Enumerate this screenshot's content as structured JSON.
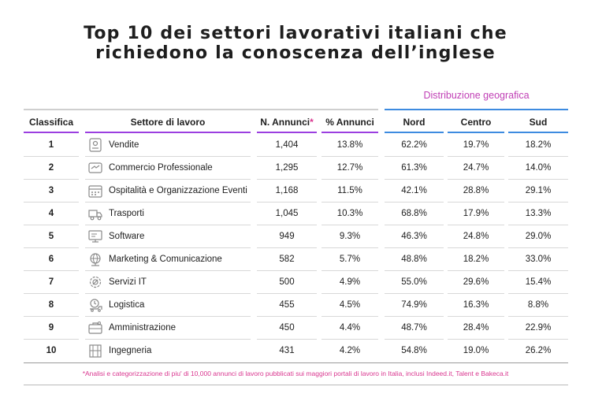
{
  "title_line1": "Top 10 dei settori lavorativi italiani che",
  "title_line2": "richiedono la conoscenza dell’inglese",
  "geo_title": "Distribuzione geografica",
  "headers": {
    "rank": "Classifica",
    "sector": "Settore di lavoro",
    "ads": "N. Annunci",
    "ads_mark": "*",
    "pct": "% Annunci",
    "nord": "Nord",
    "centro": "Centro",
    "sud": "Sud"
  },
  "colors": {
    "accent_purple": "#9b3fe0",
    "accent_blue": "#3d8be0",
    "accent_pink": "#d9368f"
  },
  "chart_data": {
    "type": "table",
    "rows": [
      {
        "rank": "1",
        "sector": "Vendite",
        "icon": "price-tag-icon",
        "ads": "1,404",
        "pct": "13.8%",
        "nord": "62.2%",
        "centro": "19.7%",
        "sud": "18.2%"
      },
      {
        "rank": "2",
        "sector": "Commercio Professionale",
        "icon": "handshake-icon",
        "ads": "1,295",
        "pct": "12.7%",
        "nord": "61.3%",
        "centro": "24.7%",
        "sud": "14.0%"
      },
      {
        "rank": "3",
        "sector": "Ospitalità e Organizzazione Eventi",
        "icon": "calendar-icon",
        "ads": "1,168",
        "pct": "11.5%",
        "nord": "42.1%",
        "centro": "28.8%",
        "sud": "29.1%"
      },
      {
        "rank": "4",
        "sector": "Trasporti",
        "icon": "truck-icon",
        "ads": "1,045",
        "pct": "10.3%",
        "nord": "68.8%",
        "centro": "17.9%",
        "sud": "13.3%"
      },
      {
        "rank": "5",
        "sector": "Software",
        "icon": "monitor-icon",
        "ads": "949",
        "pct": "9.3%",
        "nord": "46.3%",
        "centro": "24.8%",
        "sud": "29.0%"
      },
      {
        "rank": "6",
        "sector": "Marketing & Comunicazione",
        "icon": "globe-network-icon",
        "ads": "582",
        "pct": "5.7%",
        "nord": "48.8%",
        "centro": "18.2%",
        "sud": "33.0%"
      },
      {
        "rank": "7",
        "sector": "Servizi IT",
        "icon": "gear-tools-icon",
        "ads": "500",
        "pct": "4.9%",
        "nord": "55.0%",
        "centro": "29.6%",
        "sud": "15.4%"
      },
      {
        "rank": "8",
        "sector": "Logistica",
        "icon": "delivery-clock-icon",
        "ads": "455",
        "pct": "4.5%",
        "nord": "74.9%",
        "centro": "16.3%",
        "sud": "8.8%"
      },
      {
        "rank": "9",
        "sector": "Amministrazione",
        "icon": "briefcase-icon",
        "ads": "450",
        "pct": "4.4%",
        "nord": "48.7%",
        "centro": "28.4%",
        "sud": "22.9%"
      },
      {
        "rank": "10",
        "sector": "Ingegneria",
        "icon": "blueprint-icon",
        "ads": "431",
        "pct": "4.2%",
        "nord": "54.8%",
        "centro": "19.0%",
        "sud": "26.2%"
      }
    ]
  },
  "footnote": "*Analisi e categorizzazione di piu' di 10,000 annunci di lavoro pubblicati sui maggiori portali di lavoro in Italia, inclusi Indeed.it, Talent e Bakeca.it"
}
